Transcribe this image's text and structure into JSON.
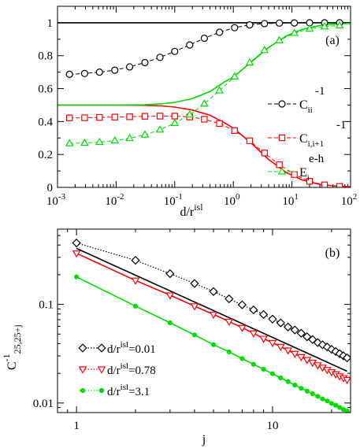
{
  "chart_data": [
    {
      "type": "line",
      "panel_label": "(a)",
      "xscale": "log",
      "xlim": [
        0.001,
        100
      ],
      "ylim": [
        0,
        1.1
      ],
      "xlabel": "d/r",
      "xlabel_sup": "isl",
      "ylabel": "",
      "x_ticks": [
        {
          "b": "10",
          "e": "-3"
        },
        {
          "b": "10",
          "e": "-2"
        },
        {
          "b": "10",
          "e": "-1"
        },
        {
          "b": "10",
          "e": "0"
        },
        {
          "b": "10",
          "e": "1"
        },
        {
          "b": "10",
          "e": "2"
        }
      ],
      "y_ticks": [
        "0",
        "0.2",
        "0.4",
        "0.6",
        "0.8",
        "1"
      ],
      "y_tick_values": [
        0,
        0.2,
        0.4,
        0.6,
        0.8,
        1
      ],
      "legend": "right",
      "series": [
        {
          "key": "cii",
          "color": "#000000",
          "style": "dashed",
          "marker": "circle",
          "legend_base": "C",
          "legend_sub": "ii",
          "legend_sup": "-1",
          "points": [
            [
              0.0016,
              0.687
            ],
            [
              0.0029,
              0.692
            ],
            [
              0.0052,
              0.7
            ],
            [
              0.0095,
              0.712
            ],
            [
              0.017,
              0.732
            ],
            [
              0.031,
              0.758
            ],
            [
              0.056,
              0.79
            ],
            [
              0.1,
              0.826
            ],
            [
              0.18,
              0.865
            ],
            [
              0.32,
              0.906
            ],
            [
              0.58,
              0.942
            ],
            [
              1.05,
              0.97
            ],
            [
              1.9,
              0.987
            ],
            [
              3.4,
              0.995
            ],
            [
              6.1,
              0.998
            ],
            [
              11,
              0.999
            ],
            [
              20,
              1.0
            ],
            [
              36,
              1.0
            ],
            [
              65,
              1.0
            ]
          ]
        },
        {
          "key": "cii1",
          "color": "#ff0000",
          "style": "dashed",
          "marker": "square",
          "legend_base": "C",
          "legend_sub": "i,i+1",
          "legend_sup": "-1",
          "points": [
            [
              0.0016,
              0.422
            ],
            [
              0.0029,
              0.423
            ],
            [
              0.0052,
              0.425
            ],
            [
              0.0095,
              0.427
            ],
            [
              0.017,
              0.429
            ],
            [
              0.031,
              0.432
            ],
            [
              0.056,
              0.433
            ],
            [
              0.1,
              0.433
            ],
            [
              0.18,
              0.428
            ],
            [
              0.32,
              0.414
            ],
            [
              0.58,
              0.388
            ],
            [
              1.05,
              0.345
            ],
            [
              1.9,
              0.283
            ],
            [
              3.4,
              0.209
            ],
            [
              6.1,
              0.138
            ],
            [
              11,
              0.078
            ],
            [
              20,
              0.037
            ],
            [
              36,
              0.015
            ],
            [
              65,
              0.006
            ]
          ]
        },
        {
          "key": "eeh",
          "color": "#00dd00",
          "style": "dashed",
          "marker": "triangle",
          "legend_base": "E",
          "legend_sub": "i",
          "legend_sup": "e-h",
          "points": [
            [
              0.0016,
              0.267
            ],
            [
              0.0029,
              0.27
            ],
            [
              0.0052,
              0.275
            ],
            [
              0.0095,
              0.284
            ],
            [
              0.017,
              0.298
            ],
            [
              0.031,
              0.32
            ],
            [
              0.056,
              0.35
            ],
            [
              0.1,
              0.39
            ],
            [
              0.18,
              0.442
            ],
            [
              0.32,
              0.508
            ],
            [
              0.58,
              0.588
            ],
            [
              1.05,
              0.673
            ],
            [
              1.9,
              0.758
            ],
            [
              3.4,
              0.833
            ],
            [
              6.1,
              0.893
            ],
            [
              11,
              0.937
            ],
            [
              20,
              0.963
            ],
            [
              36,
              0.977
            ],
            [
              65,
              0.983
            ]
          ]
        }
      ],
      "solid_lines": [
        {
          "key": "cii-solid",
          "color": "#000000",
          "points": [
            [
              0.001,
              1.0
            ],
            [
              100,
              1.0
            ]
          ]
        },
        {
          "key": "cii1-solid",
          "color": "#ff0000",
          "points": [
            [
              0.001,
              0.5
            ],
            [
              0.01,
              0.5
            ],
            [
              0.03,
              0.499
            ],
            [
              0.06,
              0.495
            ],
            [
              0.1,
              0.488
            ],
            [
              0.2,
              0.47
            ],
            [
              0.4,
              0.438
            ],
            [
              0.7,
              0.393
            ],
            [
              1.0,
              0.36
            ],
            [
              2.0,
              0.27
            ],
            [
              4.0,
              0.17
            ],
            [
              8.0,
              0.09
            ],
            [
              15,
              0.045
            ],
            [
              30,
              0.018
            ],
            [
              60,
              0.007
            ],
            [
              100,
              0.004
            ]
          ]
        },
        {
          "key": "eeh-solid",
          "color": "#00dd00",
          "points": [
            [
              0.001,
              0.5
            ],
            [
              0.01,
              0.5
            ],
            [
              0.03,
              0.502
            ],
            [
              0.06,
              0.508
            ],
            [
              0.1,
              0.516
            ],
            [
              0.2,
              0.54
            ],
            [
              0.4,
              0.582
            ],
            [
              0.7,
              0.64
            ],
            [
              1.0,
              0.67
            ],
            [
              2.0,
              0.76
            ],
            [
              4.0,
              0.85
            ],
            [
              8.0,
              0.92
            ],
            [
              15,
              0.96
            ],
            [
              30,
              0.984
            ],
            [
              60,
              0.993
            ],
            [
              100,
              0.996
            ]
          ]
        }
      ]
    },
    {
      "type": "line",
      "panel_label": "(b)",
      "xscale": "log",
      "yscale": "log",
      "xlim": [
        0.8,
        25
      ],
      "ylim": [
        0.008,
        0.58
      ],
      "xlabel": "j",
      "ylabel": "C",
      "ylabel_sup": "-1",
      "ylabel_sub": "25,25+j",
      "x_ticks": [
        "1",
        "10"
      ],
      "x_tick_values": [
        1,
        10
      ],
      "y_ticks": [
        "0.01",
        "0.1"
      ],
      "y_tick_values": [
        0.01,
        0.1
      ],
      "legend": "bottom-left",
      "series": [
        {
          "key": "d001",
          "color": "#000000",
          "style": "dotted",
          "marker": "diamond",
          "legend_prefix": "d/r",
          "legend_sup": "isl",
          "legend_suffix": "=0.01",
          "x": [
            1,
            2,
            3,
            4,
            5,
            6,
            7,
            8,
            9,
            10,
            11,
            12,
            13,
            14,
            15,
            16,
            17,
            18,
            19,
            20,
            21,
            22,
            23,
            24
          ],
          "y": [
            0.42,
            0.28,
            0.205,
            0.163,
            0.135,
            0.114,
            0.099,
            0.088,
            0.079,
            0.071,
            0.065,
            0.059,
            0.055,
            0.051,
            0.047,
            0.044,
            0.041,
            0.039,
            0.037,
            0.035,
            0.0333,
            0.0316,
            0.0301,
            0.0287
          ]
        },
        {
          "key": "d078",
          "color": "#ff0000",
          "style": "dotted",
          "marker": "triangle-down",
          "legend_prefix": "d/r",
          "legend_sup": "isl",
          "legend_suffix": "=0.78",
          "x": [
            1,
            2,
            3,
            4,
            5,
            6,
            7,
            8,
            9,
            10,
            11,
            12,
            13,
            14,
            15,
            16,
            17,
            18,
            19,
            20,
            21,
            22,
            23,
            24
          ],
          "y": [
            0.33,
            0.175,
            0.124,
            0.096,
            0.079,
            0.067,
            0.058,
            0.051,
            0.045,
            0.0408,
            0.0372,
            0.0342,
            0.0316,
            0.0293,
            0.0274,
            0.0257,
            0.0242,
            0.0229,
            0.0217,
            0.0206,
            0.0196,
            0.0187,
            0.0179,
            0.0172
          ]
        },
        {
          "key": "d31",
          "color": "#00dd00",
          "style": "dotted",
          "marker": "dot",
          "legend_prefix": "d/r",
          "legend_sup": "isl",
          "legend_suffix": "=3.1",
          "x": [
            1,
            2,
            3,
            4,
            5,
            6,
            7,
            8,
            9,
            10,
            11,
            12,
            13,
            14,
            15,
            16,
            17,
            18,
            19,
            20,
            21,
            22,
            23,
            24
          ],
          "y": [
            0.19,
            0.096,
            0.065,
            0.049,
            0.039,
            0.033,
            0.0282,
            0.0247,
            0.022,
            0.0198,
            0.018,
            0.0165,
            0.0152,
            0.0141,
            0.0132,
            0.0124,
            0.0117,
            0.011,
            0.0105,
            0.0099,
            0.0095,
            0.009,
            0.0086,
            0.0083
          ]
        }
      ],
      "solid_lines": [
        {
          "key": "fit-black",
          "color": "#000000",
          "points": [
            [
              1,
              0.37
            ],
            [
              24,
              0.021
            ]
          ]
        }
      ]
    }
  ]
}
